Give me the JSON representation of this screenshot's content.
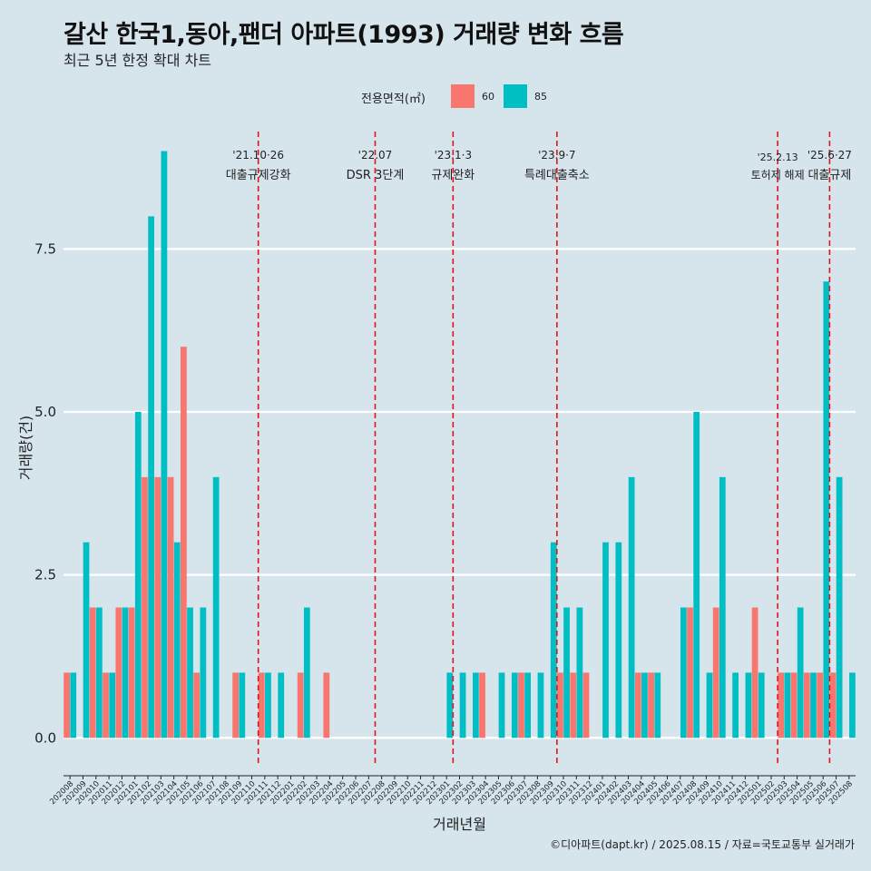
{
  "title": "갈산 한국1,동아,팬더 아파트(1993) 거래량 변화 흐름",
  "subtitle": "최근 5년 한정 확대 차트",
  "caption": "©디아파트(dapt.kr) / 2025.08.15 / 자료=국토교통부 실거래가",
  "legend": {
    "title": "전용면적(㎡)",
    "items": [
      {
        "label": "60",
        "color": "#f8766d"
      },
      {
        "label": "85",
        "color": "#00bfc4"
      }
    ]
  },
  "chart_data": {
    "type": "bar",
    "xlabel": "거래년월",
    "ylabel": "거래량(건)",
    "ylim": [
      -0.4,
      9.3
    ],
    "yticks": [
      0.0,
      2.5,
      5.0,
      7.5
    ],
    "ytick_labels": [
      "0.0",
      "2.5",
      "5.0",
      "7.5"
    ],
    "categories": [
      "202008",
      "202009",
      "202010",
      "202011",
      "202012",
      "202101",
      "202102",
      "202103",
      "202104",
      "202105",
      "202106",
      "202107",
      "202108",
      "202109",
      "202110",
      "202111",
      "202112",
      "202201",
      "202202",
      "202203",
      "202204",
      "202205",
      "202206",
      "202207",
      "202208",
      "202209",
      "202210",
      "202211",
      "202212",
      "202301",
      "202302",
      "202303",
      "202304",
      "202305",
      "202306",
      "202307",
      "202308",
      "202309",
      "202310",
      "202311",
      "202312",
      "202401",
      "202402",
      "202403",
      "202404",
      "202405",
      "202406",
      "202407",
      "202408",
      "202409",
      "202410",
      "202411",
      "202412",
      "202501",
      "202502",
      "202503",
      "202504",
      "202505",
      "202506",
      "202507",
      "202508"
    ],
    "series": [
      {
        "name": "60",
        "color": "#f8766d",
        "values": [
          1,
          0,
          2,
          1,
          2,
          2,
          4,
          4,
          4,
          6,
          1,
          0,
          0,
          1,
          0,
          1,
          0,
          0,
          1,
          0,
          1,
          0,
          0,
          0,
          0,
          0,
          0,
          0,
          0,
          0,
          0,
          0,
          1,
          0,
          0,
          1,
          0,
          0,
          1,
          1,
          1,
          0,
          0,
          0,
          1,
          1,
          0,
          0,
          2,
          0,
          2,
          0,
          0,
          2,
          0,
          1,
          1,
          1,
          1,
          1,
          0
        ]
      },
      {
        "name": "85",
        "color": "#00bfc4",
        "values": [
          1,
          3,
          2,
          1,
          2,
          5,
          8,
          9,
          3,
          2,
          2,
          4,
          0,
          1,
          0,
          1,
          1,
          0,
          2,
          0,
          0,
          0,
          0,
          0,
          0,
          0,
          0,
          0,
          0,
          1,
          1,
          1,
          0,
          1,
          1,
          1,
          1,
          3,
          2,
          2,
          0,
          3,
          3,
          4,
          1,
          1,
          0,
          2,
          5,
          1,
          4,
          1,
          1,
          1,
          0,
          1,
          2,
          1,
          7,
          4,
          1
        ]
      }
    ],
    "events": [
      {
        "after": "202110",
        "date": "'21.10·26",
        "label": "대출규제강화"
      },
      {
        "after": "202207",
        "date": "'22.07",
        "label": "DSR 3단계"
      },
      {
        "after": "202301",
        "date": "'23.1·3",
        "label": "규제완화"
      },
      {
        "after": "202309",
        "date": "'23.9·7",
        "label": "특례대출축소"
      },
      {
        "after": "202502",
        "date": "'25.2.13",
        "label": "토허제 해제"
      },
      {
        "after": "202506",
        "date": "'25.6·27",
        "label": "대출규제"
      }
    ]
  }
}
